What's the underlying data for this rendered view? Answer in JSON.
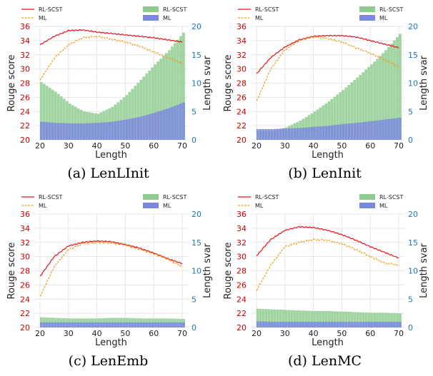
{
  "figure": {
    "legend_labels": {
      "rl_line": "RL-SCST",
      "ml_line": "ML",
      "rl_bar": "RL-SCST",
      "ml_bar": "ML"
    },
    "colors": {
      "rl_line": "#e8111a",
      "ml_line": "#f0a020",
      "rl_bar": "#8fcc8f",
      "ml_bar": "#7b88e0"
    }
  },
  "chart_data": [
    {
      "type": "line",
      "caption": "(a) LenLInit",
      "xlabel": "Length",
      "ylabel": "Rouge score",
      "y2label": "Length svar",
      "xlim": [
        18,
        72
      ],
      "ylim": [
        20,
        36
      ],
      "y2lim": [
        0,
        20
      ],
      "x_ticks": [
        20,
        30,
        40,
        50,
        60,
        70
      ],
      "y_ticks": [
        20,
        22,
        24,
        26,
        28,
        30,
        32,
        34,
        36
      ],
      "y2_ticks": [
        0,
        5,
        10,
        15,
        20
      ],
      "legend": [
        "RL-SCST",
        "ML",
        "RL-SCST",
        "ML"
      ],
      "x": [
        20,
        25,
        30,
        35,
        40,
        45,
        50,
        55,
        60,
        65,
        70
      ],
      "series": [
        {
          "name": "RL-SCST",
          "values": [
            33.4,
            34.6,
            35.4,
            35.5,
            35.2,
            35.0,
            34.8,
            34.6,
            34.4,
            34.1,
            33.8
          ]
        },
        {
          "name": "ML",
          "values": [
            28.4,
            31.5,
            33.4,
            34.4,
            34.6,
            34.2,
            33.8,
            33.2,
            32.4,
            31.6,
            30.8
          ]
        }
      ],
      "bar_series": [
        {
          "name": "RL-SCST",
          "values": [
            10.2,
            8.5,
            6.4,
            5.0,
            4.6,
            5.8,
            7.9,
            10.6,
            13.3,
            15.8,
            18.9
          ]
        },
        {
          "name": "ML",
          "values": [
            3.2,
            3.0,
            2.9,
            2.9,
            3.0,
            3.2,
            3.6,
            4.1,
            4.8,
            5.6,
            6.6
          ]
        }
      ]
    },
    {
      "type": "line",
      "caption": "(b) LenInit",
      "xlabel": "Length",
      "ylabel": "Rouge score",
      "y2label": "Length svar",
      "xlim": [
        18,
        72
      ],
      "ylim": [
        20,
        36
      ],
      "y2lim": [
        0,
        20
      ],
      "x_ticks": [
        20,
        30,
        40,
        50,
        60,
        70
      ],
      "y_ticks": [
        20,
        22,
        24,
        26,
        28,
        30,
        32,
        34,
        36
      ],
      "y2_ticks": [
        0,
        5,
        10,
        15,
        20
      ],
      "legend": [
        "RL-SCST",
        "ML",
        "RL-SCST",
        "ML"
      ],
      "x": [
        20,
        25,
        30,
        35,
        40,
        45,
        50,
        55,
        60,
        65,
        70
      ],
      "series": [
        {
          "name": "RL-SCST",
          "values": [
            29.3,
            31.6,
            33.1,
            34.1,
            34.6,
            34.7,
            34.7,
            34.5,
            34.0,
            33.5,
            33.0
          ]
        },
        {
          "name": "ML",
          "values": [
            25.4,
            30.0,
            32.7,
            34.0,
            34.5,
            34.3,
            33.8,
            33.0,
            32.2,
            31.3,
            30.3
          ]
        }
      ],
      "bar_series": [
        {
          "name": "RL-SCST",
          "values": [
            1.6,
            1.6,
            2.2,
            3.4,
            5.0,
            6.8,
            8.8,
            11.0,
            13.3,
            15.8,
            18.7
          ]
        },
        {
          "name": "ML",
          "values": [
            1.9,
            1.9,
            2.0,
            2.1,
            2.3,
            2.5,
            2.8,
            3.0,
            3.3,
            3.6,
            3.9
          ]
        }
      ]
    },
    {
      "type": "line",
      "caption": "(c) LenEmb",
      "xlabel": "Length",
      "ylabel": "Rouge score",
      "y2label": "Length svar",
      "xlim": [
        18,
        72
      ],
      "ylim": [
        20,
        36
      ],
      "y2lim": [
        0,
        20
      ],
      "x_ticks": [
        20,
        30,
        40,
        50,
        60,
        70
      ],
      "y_ticks": [
        20,
        22,
        24,
        26,
        28,
        30,
        32,
        34,
        36
      ],
      "y2_ticks": [
        0,
        5,
        10,
        15,
        20
      ],
      "legend": [
        "RL-SCST",
        "ML",
        "RL-SCST",
        "ML"
      ],
      "x": [
        20,
        25,
        30,
        35,
        40,
        45,
        50,
        55,
        60,
        65,
        70
      ],
      "series": [
        {
          "name": "RL-SCST",
          "values": [
            27.2,
            30.0,
            31.5,
            32.0,
            32.2,
            32.1,
            31.7,
            31.2,
            30.5,
            29.7,
            29.0
          ]
        },
        {
          "name": "ML",
          "values": [
            24.3,
            28.6,
            31.0,
            31.8,
            32.0,
            31.9,
            31.6,
            31.0,
            30.4,
            29.6,
            28.6
          ]
        }
      ],
      "bar_series": [
        {
          "name": "RL-SCST",
          "values": [
            1.8,
            1.7,
            1.6,
            1.6,
            1.6,
            1.7,
            1.7,
            1.6,
            1.6,
            1.6,
            1.5
          ]
        },
        {
          "name": "ML",
          "values": [
            0.9,
            0.9,
            0.9,
            0.9,
            0.9,
            0.9,
            0.9,
            0.9,
            0.9,
            0.9,
            0.9
          ]
        }
      ]
    },
    {
      "type": "line",
      "caption": "(d) LenMC",
      "xlabel": "Length",
      "ylabel": "Rouge score",
      "y2label": "Length svar",
      "xlim": [
        18,
        72
      ],
      "ylim": [
        20,
        36
      ],
      "y2lim": [
        0,
        20
      ],
      "x_ticks": [
        20,
        30,
        40,
        50,
        60,
        70
      ],
      "y_ticks": [
        20,
        22,
        24,
        26,
        28,
        30,
        32,
        34,
        36
      ],
      "y2_ticks": [
        0,
        5,
        10,
        15,
        20
      ],
      "legend": [
        "RL-SCST",
        "ML",
        "RL-SCST",
        "ML"
      ],
      "x": [
        20,
        25,
        30,
        35,
        40,
        45,
        50,
        55,
        60,
        65,
        70
      ],
      "series": [
        {
          "name": "RL-SCST",
          "values": [
            30.1,
            32.4,
            33.7,
            34.2,
            34.1,
            33.7,
            33.1,
            32.3,
            31.4,
            30.6,
            29.8
          ]
        },
        {
          "name": "ML",
          "values": [
            25.2,
            28.8,
            31.4,
            32.0,
            32.4,
            32.3,
            31.8,
            31.0,
            30.0,
            29.1,
            28.8
          ]
        }
      ],
      "bar_series": [
        {
          "name": "RL-SCST",
          "values": [
            3.3,
            3.2,
            3.1,
            3.0,
            2.9,
            2.9,
            2.8,
            2.7,
            2.6,
            2.6,
            2.5
          ]
        },
        {
          "name": "ML",
          "values": [
            1.1,
            1.0,
            1.0,
            1.0,
            1.0,
            1.0,
            1.0,
            1.0,
            1.0,
            1.0,
            1.0
          ]
        }
      ]
    }
  ]
}
